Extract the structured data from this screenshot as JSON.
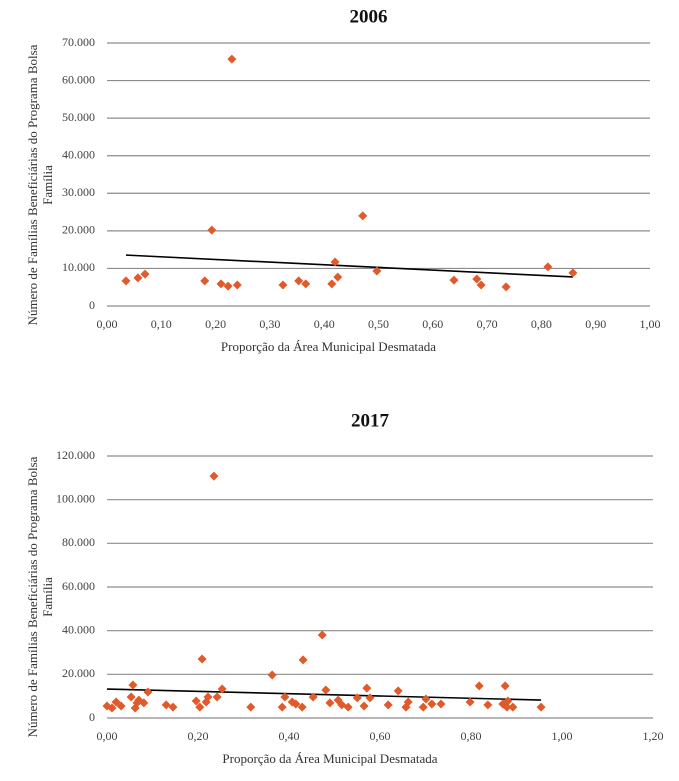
{
  "chart_data": [
    {
      "type": "scatter",
      "title": "2006",
      "x_label": "Proporção da Área Municipal Desmatada",
      "y_label": "Número de Famílias Beneficiárias do Programa Bolsa Família",
      "color": "#e05a2b",
      "trendline": true,
      "grid": true,
      "xlim": [
        0,
        1
      ],
      "ylim": [
        0,
        70000
      ],
      "xticks": [
        {
          "value": 0,
          "label": "0,00"
        },
        {
          "value": 0.1,
          "label": "0,10"
        },
        {
          "value": 0.2,
          "label": "0,20"
        },
        {
          "value": 0.3,
          "label": "0,30"
        },
        {
          "value": 0.4,
          "label": "0,40"
        },
        {
          "value": 0.5,
          "label": "0,50"
        },
        {
          "value": 0.6,
          "label": "0,60"
        },
        {
          "value": 0.7,
          "label": "0,70"
        },
        {
          "value": 0.8,
          "label": "0,80"
        },
        {
          "value": 0.9,
          "label": "0,90"
        },
        {
          "value": 1,
          "label": "1,00"
        }
      ],
      "yticks": [
        0,
        {
          "value": 10000,
          "label": "10.000"
        },
        {
          "value": 20000,
          "label": "20.000"
        },
        {
          "value": 30000,
          "label": "30.000"
        },
        {
          "value": 40000,
          "label": "40.000"
        },
        {
          "value": 50000,
          "label": "50.000"
        },
        {
          "value": 60000,
          "label": "60.000"
        },
        {
          "value": 70000,
          "label": "70.000"
        }
      ],
      "x": [
        0.035,
        0.057,
        0.07,
        0.18,
        0.193,
        0.21,
        0.223,
        0.23,
        0.24,
        0.324,
        0.353,
        0.366,
        0.414,
        0.42,
        0.425,
        0.471,
        0.497,
        0.639,
        0.681,
        0.689,
        0.735,
        0.812,
        0.858
      ],
      "values": [
        6700,
        7500,
        8500,
        6700,
        20200,
        5900,
        5300,
        65700,
        5600,
        5600,
        6700,
        5900,
        5900,
        11700,
        7700,
        24000,
        9300,
        6900,
        7200,
        5600,
        5100,
        10400,
        8800
      ]
    },
    {
      "type": "scatter",
      "title": "2017",
      "x_label": "Proporção da Área Municipal Desmatada",
      "y_label": "Número de Famílias Beneficiárias do Programa Bolsa Família",
      "color": "#e05a2b",
      "trendline": true,
      "grid": true,
      "xlim": [
        0,
        1.2
      ],
      "ylim": [
        0,
        120000
      ],
      "xticks": [
        {
          "value": 0,
          "label": "0,00"
        },
        {
          "value": 0.2,
          "label": "0,20"
        },
        {
          "value": 0.4,
          "label": "0,40"
        },
        {
          "value": 0.6,
          "label": "0,60"
        },
        {
          "value": 0.8,
          "label": "0,80"
        },
        {
          "value": 1,
          "label": "1,00"
        },
        {
          "value": 1.2,
          "label": "1,20"
        }
      ],
      "yticks": [
        0,
        {
          "value": 20000,
          "label": "20.000"
        },
        {
          "value": 40000,
          "label": "40.000"
        },
        {
          "value": 60000,
          "label": "60.000"
        },
        {
          "value": 80000,
          "label": "80.000"
        },
        {
          "value": 100000,
          "label": "100.000"
        },
        {
          "value": 120000,
          "label": "120.000"
        }
      ],
      "x": [
        0,
        0.011,
        0.02,
        0.031,
        0.053,
        0.057,
        0.062,
        0.066,
        0.07,
        0.081,
        0.09,
        0.13,
        0.145,
        0.196,
        0.204,
        0.209,
        0.218,
        0.222,
        0.235,
        0.242,
        0.253,
        0.316,
        0.363,
        0.385,
        0.391,
        0.407,
        0.415,
        0.429,
        0.431,
        0.453,
        0.473,
        0.481,
        0.49,
        0.508,
        0.516,
        0.53,
        0.55,
        0.565,
        0.571,
        0.578,
        0.618,
        0.64,
        0.657,
        0.662,
        0.695,
        0.701,
        0.714,
        0.734,
        0.798,
        0.818,
        0.837,
        0.87,
        0.875,
        0.879,
        0.881,
        0.892,
        0.954
      ],
      "values": [
        5500,
        4600,
        7300,
        5500,
        9600,
        15100,
        4600,
        6900,
        8200,
        6900,
        11900,
        6000,
        5000,
        7800,
        5000,
        27000,
        7300,
        9600,
        110800,
        9600,
        13300,
        5000,
        19700,
        5000,
        9600,
        7300,
        6400,
        5000,
        26600,
        9600,
        38000,
        12800,
        6900,
        8200,
        6000,
        5000,
        9200,
        5500,
        13700,
        9200,
        6000,
        12400,
        5000,
        7300,
        5000,
        8700,
        6400,
        6400,
        7300,
        14700,
        6000,
        6400,
        14700,
        5000,
        7800,
        5000,
        5000
      ]
    }
  ]
}
